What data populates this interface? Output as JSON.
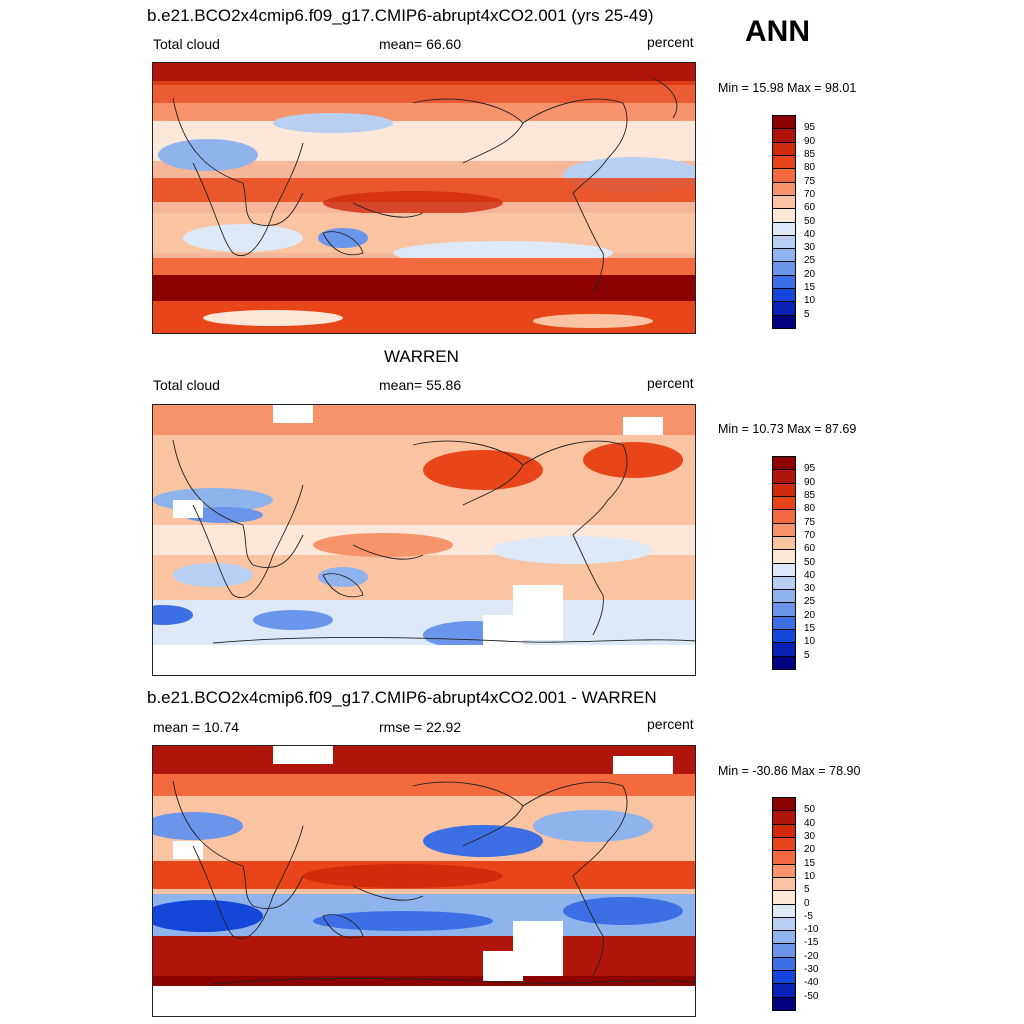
{
  "season": "ANN",
  "panels": [
    {
      "title": "b.e21.BCO2x4cmip6.f09_g17.CMIP6-abrupt4xCO2.001 (yrs 25-49)",
      "left_label": "Total cloud",
      "center_label": "mean=  66.60",
      "right_label": "percent",
      "minmax": "Min =  15.98 Max =  98.01",
      "colorbar_labels": [
        "95",
        "90",
        "85",
        "80",
        "75",
        "70",
        "60",
        "50",
        "40",
        "30",
        "25",
        "20",
        "15",
        "10",
        "5"
      ]
    },
    {
      "title": "WARREN",
      "left_label": "Total cloud",
      "center_label": "mean=  55.86",
      "right_label": "percent",
      "minmax": "Min =  10.73 Max =  87.69",
      "colorbar_labels": [
        "95",
        "90",
        "85",
        "80",
        "75",
        "70",
        "60",
        "50",
        "40",
        "30",
        "25",
        "20",
        "15",
        "10",
        "5"
      ]
    },
    {
      "title": "b.e21.BCO2x4cmip6.f09_g17.CMIP6-abrupt4xCO2.001 - WARREN",
      "left_label": "mean =  10.74",
      "center_label": "rmse =  22.92",
      "right_label": "percent",
      "minmax": "Min = -30.86 Max =  78.90",
      "colorbar_labels": [
        "50",
        "40",
        "30",
        "20",
        "15",
        "10",
        "5",
        "0",
        "-5",
        "-10",
        "-15",
        "-20",
        "-30",
        "-40",
        "-50"
      ]
    }
  ],
  "colorbar_colors": [
    "#8b0000",
    "#b0150b",
    "#d12a0c",
    "#e8461a",
    "#f26a3d",
    "#f7946b",
    "#fac3a2",
    "#fde7d9",
    "#dde9f6",
    "#b7d0f2",
    "#8fb3ed",
    "#6a95ea",
    "#3c6fe3",
    "#1446d9",
    "#0a1fb3",
    "#000080"
  ]
}
